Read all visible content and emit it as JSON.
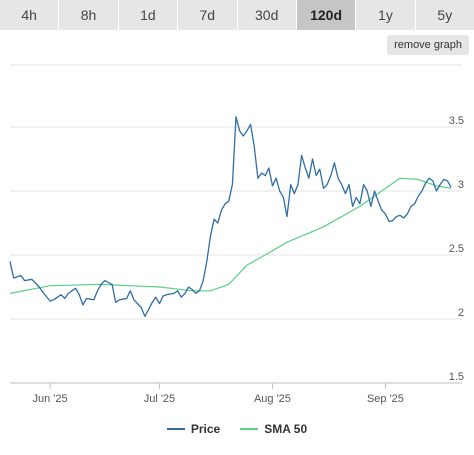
{
  "tabs": [
    {
      "label": "4h",
      "active": false
    },
    {
      "label": "8h",
      "active": false
    },
    {
      "label": "1d",
      "active": false
    },
    {
      "label": "7d",
      "active": false
    },
    {
      "label": "30d",
      "active": false
    },
    {
      "label": "120d",
      "active": true
    },
    {
      "label": "1y",
      "active": false
    },
    {
      "label": "5y",
      "active": false
    }
  ],
  "remove_graph_label": "remove graph",
  "chart_data": {
    "type": "line",
    "x_start": "2025-05-21",
    "x_end": "2025-09-22",
    "ylim": [
      1.5,
      3.6
    ],
    "y_ticks": [
      "1.5",
      "2",
      "2.5",
      "3",
      "3.5"
    ],
    "x_ticks": [
      {
        "label": "Jun '25",
        "date": "2025-06-01"
      },
      {
        "label": "Jul '25",
        "date": "2025-07-01"
      },
      {
        "label": "Aug '25",
        "date": "2025-08-01"
      },
      {
        "label": "Sep '25",
        "date": "2025-09-01"
      }
    ],
    "grid": true,
    "legend": "bottom-center",
    "series": [
      {
        "name": "Price",
        "color": "#2f6ea5",
        "points": [
          [
            "2025-05-21",
            2.45
          ],
          [
            "2025-05-22",
            2.32
          ],
          [
            "2025-05-24",
            2.34
          ],
          [
            "2025-05-25",
            2.3
          ],
          [
            "2025-05-27",
            2.31
          ],
          [
            "2025-05-29",
            2.25
          ],
          [
            "2025-05-30",
            2.21
          ],
          [
            "2025-06-01",
            2.14
          ],
          [
            "2025-06-02",
            2.15
          ],
          [
            "2025-06-04",
            2.19
          ],
          [
            "2025-06-05",
            2.16
          ],
          [
            "2025-06-06",
            2.2
          ],
          [
            "2025-06-08",
            2.24
          ],
          [
            "2025-06-09",
            2.19
          ],
          [
            "2025-06-10",
            2.11
          ],
          [
            "2025-06-11",
            2.16
          ],
          [
            "2025-06-13",
            2.15
          ],
          [
            "2025-06-14",
            2.22
          ],
          [
            "2025-06-15",
            2.27
          ],
          [
            "2025-06-16",
            2.3
          ],
          [
            "2025-06-18",
            2.27
          ],
          [
            "2025-06-19",
            2.13
          ],
          [
            "2025-06-20",
            2.15
          ],
          [
            "2025-06-22",
            2.16
          ],
          [
            "2025-06-23",
            2.22
          ],
          [
            "2025-06-24",
            2.15
          ],
          [
            "2025-06-26",
            2.09
          ],
          [
            "2025-06-27",
            2.02
          ],
          [
            "2025-06-29",
            2.13
          ],
          [
            "2025-06-30",
            2.17
          ],
          [
            "2025-07-01",
            2.12
          ],
          [
            "2025-07-02",
            2.18
          ],
          [
            "2025-07-03",
            2.19
          ],
          [
            "2025-07-05",
            2.2
          ],
          [
            "2025-07-06",
            2.22
          ],
          [
            "2025-07-07",
            2.17
          ],
          [
            "2025-07-08",
            2.2
          ],
          [
            "2025-07-09",
            2.25
          ],
          [
            "2025-07-10",
            2.23
          ],
          [
            "2025-07-11",
            2.2
          ],
          [
            "2025-07-12",
            2.22
          ],
          [
            "2025-07-13",
            2.3
          ],
          [
            "2025-07-14",
            2.45
          ],
          [
            "2025-07-15",
            2.65
          ],
          [
            "2025-07-16",
            2.78
          ],
          [
            "2025-07-17",
            2.75
          ],
          [
            "2025-07-18",
            2.85
          ],
          [
            "2025-07-19",
            2.9
          ],
          [
            "2025-07-20",
            2.92
          ],
          [
            "2025-07-21",
            3.05
          ],
          [
            "2025-07-22",
            3.58
          ],
          [
            "2025-07-23",
            3.47
          ],
          [
            "2025-07-24",
            3.43
          ],
          [
            "2025-07-25",
            3.47
          ],
          [
            "2025-07-26",
            3.52
          ],
          [
            "2025-07-27",
            3.35
          ],
          [
            "2025-07-28",
            3.1
          ],
          [
            "2025-07-29",
            3.14
          ],
          [
            "2025-07-30",
            3.12
          ],
          [
            "2025-07-31",
            3.18
          ],
          [
            "2025-08-01",
            3.04
          ],
          [
            "2025-08-02",
            3.1
          ],
          [
            "2025-08-03",
            3.0
          ],
          [
            "2025-08-04",
            2.95
          ],
          [
            "2025-08-05",
            2.8
          ],
          [
            "2025-08-06",
            3.05
          ],
          [
            "2025-08-07",
            2.98
          ],
          [
            "2025-08-08",
            3.05
          ],
          [
            "2025-08-09",
            3.28
          ],
          [
            "2025-08-10",
            3.18
          ],
          [
            "2025-08-11",
            3.1
          ],
          [
            "2025-08-12",
            3.25
          ],
          [
            "2025-08-13",
            3.12
          ],
          [
            "2025-08-14",
            3.17
          ],
          [
            "2025-08-15",
            3.02
          ],
          [
            "2025-08-16",
            3.05
          ],
          [
            "2025-08-17",
            3.12
          ],
          [
            "2025-08-18",
            3.22
          ],
          [
            "2025-08-19",
            3.1
          ],
          [
            "2025-08-20",
            3.05
          ],
          [
            "2025-08-21",
            2.98
          ],
          [
            "2025-08-22",
            3.05
          ],
          [
            "2025-08-23",
            2.88
          ],
          [
            "2025-08-24",
            2.95
          ],
          [
            "2025-08-25",
            2.9
          ],
          [
            "2025-08-26",
            3.05
          ],
          [
            "2025-08-27",
            3.0
          ],
          [
            "2025-08-28",
            2.88
          ],
          [
            "2025-08-29",
            3.0
          ],
          [
            "2025-08-30",
            2.92
          ],
          [
            "2025-08-31",
            2.85
          ],
          [
            "2025-09-01",
            2.82
          ],
          [
            "2025-09-02",
            2.76
          ],
          [
            "2025-09-03",
            2.77
          ],
          [
            "2025-09-04",
            2.8
          ],
          [
            "2025-09-05",
            2.81
          ],
          [
            "2025-09-06",
            2.79
          ],
          [
            "2025-09-07",
            2.82
          ],
          [
            "2025-09-08",
            2.88
          ],
          [
            "2025-09-09",
            2.9
          ],
          [
            "2025-09-10",
            2.96
          ],
          [
            "2025-09-11",
            3.0
          ],
          [
            "2025-09-12",
            3.06
          ],
          [
            "2025-09-13",
            3.1
          ],
          [
            "2025-09-14",
            3.08
          ],
          [
            "2025-09-15",
            3.0
          ],
          [
            "2025-09-16",
            3.05
          ],
          [
            "2025-09-17",
            3.09
          ],
          [
            "2025-09-18",
            3.08
          ],
          [
            "2025-09-19",
            3.03
          ]
        ]
      },
      {
        "name": "SMA 50",
        "color": "#5ad08a",
        "points": [
          [
            "2025-05-21",
            2.2
          ],
          [
            "2025-06-01",
            2.26
          ],
          [
            "2025-06-15",
            2.27
          ],
          [
            "2025-07-01",
            2.25
          ],
          [
            "2025-07-10",
            2.22
          ],
          [
            "2025-07-15",
            2.22
          ],
          [
            "2025-07-20",
            2.27
          ],
          [
            "2025-07-25",
            2.42
          ],
          [
            "2025-07-30",
            2.5
          ],
          [
            "2025-08-05",
            2.6
          ],
          [
            "2025-08-15",
            2.72
          ],
          [
            "2025-08-25",
            2.88
          ],
          [
            "2025-09-01",
            3.02
          ],
          [
            "2025-09-05",
            3.1
          ],
          [
            "2025-09-10",
            3.09
          ],
          [
            "2025-09-15",
            3.04
          ],
          [
            "2025-09-19",
            3.02
          ]
        ]
      }
    ]
  }
}
